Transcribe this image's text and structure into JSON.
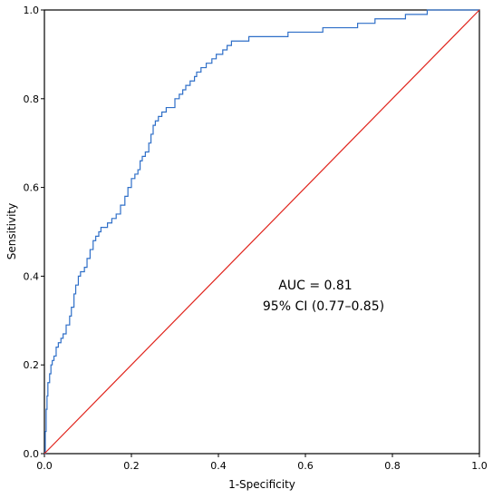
{
  "chart_data": {
    "type": "line",
    "title": "",
    "xlabel": "1-Specificity",
    "ylabel": "Sensitivity",
    "xlim": [
      0,
      1
    ],
    "ylim": [
      0,
      1
    ],
    "grid": false,
    "x_ticks": [
      "0.0",
      "0.2",
      "0.4",
      "0.6",
      "0.8",
      "1.0"
    ],
    "y_ticks": [
      "0.0",
      "0.2",
      "0.4",
      "0.6",
      "0.8",
      "1.0"
    ],
    "annotations": [
      "AUC = 0.81",
      "95% CI (0.77–0.85)"
    ],
    "series": [
      {
        "color": "#2f6fc8",
        "x": [
          0,
          0.002,
          0.004,
          0.006,
          0.008,
          0.012,
          0.015,
          0.018,
          0.022,
          0.027,
          0.032,
          0.038,
          0.043,
          0.05,
          0.058,
          0.062,
          0.068,
          0.072,
          0.078,
          0.083,
          0.088,
          0.092,
          0.098,
          0.105,
          0.112,
          0.118,
          0.125,
          0.13,
          0.138,
          0.145,
          0.155,
          0.165,
          0.175,
          0.185,
          0.192,
          0.2,
          0.208,
          0.215,
          0.22,
          0.225,
          0.232,
          0.24,
          0.245,
          0.25,
          0.255,
          0.262,
          0.27,
          0.28,
          0.3,
          0.31,
          0.318,
          0.325,
          0.335,
          0.345,
          0.35,
          0.36,
          0.372,
          0.385,
          0.395,
          0.41,
          0.42,
          0.43,
          0.45,
          0.47,
          0.5,
          0.53,
          0.56,
          0.6,
          0.64,
          0.68,
          0.72,
          0.76,
          0.8,
          0.83,
          0.86,
          0.88,
          0.89,
          0.9,
          0.91,
          0.93,
          1.0
        ],
        "y": [
          0,
          0.05,
          0.1,
          0.13,
          0.16,
          0.18,
          0.2,
          0.21,
          0.22,
          0.24,
          0.25,
          0.26,
          0.27,
          0.29,
          0.31,
          0.33,
          0.36,
          0.38,
          0.4,
          0.41,
          0.41,
          0.42,
          0.44,
          0.46,
          0.48,
          0.49,
          0.5,
          0.51,
          0.51,
          0.52,
          0.53,
          0.54,
          0.56,
          0.58,
          0.6,
          0.62,
          0.63,
          0.64,
          0.66,
          0.67,
          0.68,
          0.7,
          0.72,
          0.74,
          0.75,
          0.76,
          0.77,
          0.78,
          0.8,
          0.81,
          0.82,
          0.83,
          0.84,
          0.85,
          0.86,
          0.87,
          0.88,
          0.89,
          0.9,
          0.91,
          0.92,
          0.93,
          0.93,
          0.94,
          0.94,
          0.94,
          0.95,
          0.95,
          0.96,
          0.96,
          0.97,
          0.98,
          0.98,
          0.99,
          0.99,
          1.0,
          1.0,
          1.0,
          1.0,
          1.0,
          1.0
        ]
      },
      {
        "color": "#e0241c",
        "x": [
          0,
          1
        ],
        "y": [
          0,
          1
        ]
      }
    ]
  }
}
